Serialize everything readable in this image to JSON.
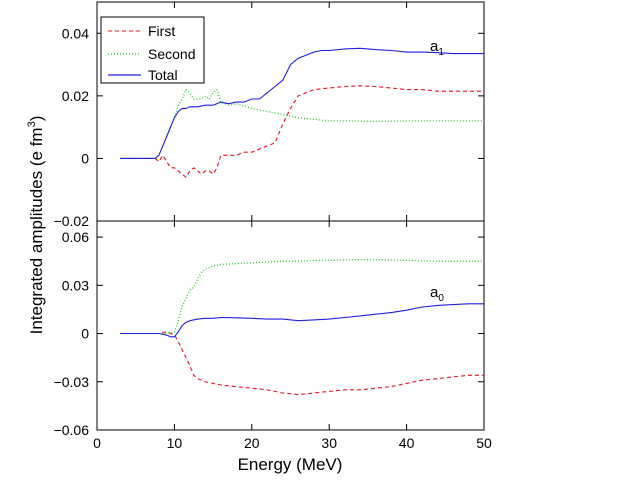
{
  "chart_data": [
    {
      "type": "line",
      "panel_label": "a",
      "panel_subscript": "1",
      "xlabel": "Energy (MeV)",
      "ylabel": "Integrated amplitudes (e fm",
      "ylabel_superscript": "3",
      "ylabel_close": ")",
      "xlim": [
        0,
        50
      ],
      "ylim": [
        -0.02,
        0.05
      ],
      "y_ticks": [
        -0.02,
        0,
        0.02,
        0.04
      ],
      "y_tick_labels": [
        "−0.02",
        "0",
        "0.02",
        "0.04"
      ],
      "grid": false,
      "legend": "top-left",
      "series": [
        {
          "name": "First",
          "color": "#e8141e",
          "dash": "dashed",
          "x": [
            3,
            7.5,
            8,
            8.5,
            9,
            9.5,
            10,
            10.5,
            11,
            11.5,
            12,
            12.5,
            13,
            13.5,
            14,
            14.5,
            15,
            15.5,
            16,
            17,
            18,
            19,
            20,
            21,
            22,
            23,
            24,
            25,
            26,
            27,
            28,
            30,
            32,
            34,
            36,
            38,
            40,
            42,
            44,
            46,
            48,
            50
          ],
          "y": [
            0,
            0,
            -0.001,
            0.001,
            -0.001,
            -0.003,
            -0.003,
            -0.004,
            -0.005,
            -0.006,
            -0.004,
            -0.003,
            -0.004,
            -0.005,
            -0.004,
            -0.004,
            -0.005,
            -0.003,
            0.001,
            0.001,
            0.001,
            0.002,
            0.002,
            0.003,
            0.004,
            0.005,
            0.011,
            0.016,
            0.02,
            0.021,
            0.022,
            0.0225,
            0.023,
            0.0232,
            0.023,
            0.0225,
            0.022,
            0.022,
            0.0215,
            0.0215,
            0.0215,
            0.0215
          ]
        },
        {
          "name": "Second",
          "color": "#1fc81f",
          "dash": "dotted",
          "x": [
            3,
            7.5,
            8,
            8.5,
            9,
            9.5,
            10,
            10.5,
            11,
            11.5,
            12,
            12.5,
            13,
            13.5,
            14,
            14.5,
            15,
            15.5,
            16,
            17,
            18,
            20,
            22,
            24,
            26,
            28,
            30,
            33,
            36,
            40,
            44,
            48,
            50
          ],
          "y": [
            0,
            0,
            0.001,
            0.004,
            0.007,
            0.01,
            0.013,
            0.017,
            0.019,
            0.022,
            0.021,
            0.019,
            0.019,
            0.019,
            0.02,
            0.019,
            0.021,
            0.022,
            0.018,
            0.017,
            0.0175,
            0.016,
            0.015,
            0.014,
            0.013,
            0.0125,
            0.012,
            0.012,
            0.0118,
            0.012,
            0.012,
            0.012,
            0.012
          ]
        },
        {
          "name": "Total",
          "color": "#1f1fe0",
          "dash": "solid",
          "x": [
            3,
            7.5,
            8,
            8.5,
            9,
            9.5,
            10,
            10.5,
            11,
            11.5,
            12,
            13,
            14,
            15,
            16,
            17,
            18,
            19,
            20,
            21,
            22,
            23,
            24,
            25,
            26,
            27,
            28,
            29,
            30,
            32,
            34,
            36,
            38,
            40,
            42,
            44,
            46,
            48,
            50
          ],
          "y": [
            0,
            0,
            0.001,
            0.004,
            0.007,
            0.01,
            0.013,
            0.015,
            0.016,
            0.016,
            0.0165,
            0.0165,
            0.017,
            0.017,
            0.018,
            0.0175,
            0.018,
            0.018,
            0.019,
            0.019,
            0.021,
            0.023,
            0.025,
            0.03,
            0.032,
            0.033,
            0.034,
            0.0345,
            0.0345,
            0.035,
            0.0352,
            0.0348,
            0.0345,
            0.034,
            0.034,
            0.0338,
            0.0335,
            0.0335,
            0.0335
          ]
        }
      ]
    },
    {
      "type": "line",
      "panel_label": "a",
      "panel_subscript": "0",
      "xlabel": "Energy (MeV)",
      "xlim": [
        0,
        50
      ],
      "ylim": [
        -0.06,
        0.07
      ],
      "y_ticks": [
        -0.06,
        -0.03,
        0,
        0.03,
        0.06
      ],
      "y_tick_labels": [
        "−0.06",
        "−0.03",
        "0",
        "0.03",
        "0.06"
      ],
      "x_ticks": [
        0,
        10,
        20,
        30,
        40,
        50
      ],
      "x_tick_labels": [
        "0",
        "10",
        "20",
        "30",
        "40",
        "50"
      ],
      "grid": false,
      "series": [
        {
          "name": "First",
          "color": "#e8141e",
          "dash": "dashed",
          "x": [
            3,
            8,
            9,
            10,
            10.5,
            11,
            11.5,
            12,
            12.5,
            13,
            14,
            15,
            16,
            18,
            20,
            22,
            24,
            26,
            28,
            30,
            32,
            34,
            36,
            38,
            40,
            42,
            44,
            46,
            48,
            50
          ],
          "y": [
            0,
            0,
            0.001,
            -0.001,
            -0.005,
            -0.01,
            -0.015,
            -0.02,
            -0.026,
            -0.028,
            -0.03,
            -0.031,
            -0.032,
            -0.033,
            -0.034,
            -0.035,
            -0.037,
            -0.038,
            -0.037,
            -0.036,
            -0.035,
            -0.035,
            -0.034,
            -0.033,
            -0.031,
            -0.029,
            -0.028,
            -0.027,
            -0.026,
            -0.026
          ]
        },
        {
          "name": "Second",
          "color": "#1fc81f",
          "dash": "dotted",
          "x": [
            3,
            8,
            9,
            10,
            10.5,
            11,
            11.5,
            12,
            12.5,
            13,
            13.5,
            14,
            15,
            16,
            18,
            20,
            22,
            24,
            26,
            28,
            30,
            33,
            36,
            40,
            44,
            48,
            50
          ],
          "y": [
            0,
            0,
            0,
            0.001,
            0.008,
            0.017,
            0.022,
            0.027,
            0.029,
            0.034,
            0.038,
            0.04,
            0.042,
            0.043,
            0.0435,
            0.044,
            0.0445,
            0.045,
            0.045,
            0.0455,
            0.0455,
            0.046,
            0.046,
            0.0455,
            0.045,
            0.045,
            0.045
          ]
        },
        {
          "name": "Total",
          "color": "#1f1fe0",
          "dash": "solid",
          "x": [
            3,
            8,
            9,
            9.5,
            10,
            10.5,
            11,
            11.5,
            12,
            13,
            14,
            15,
            16,
            18,
            20,
            22,
            24,
            26,
            28,
            30,
            32,
            34,
            36,
            38,
            40,
            42,
            44,
            46,
            48,
            50
          ],
          "y": [
            0,
            0,
            -0.001,
            -0.002,
            -0.002,
            0.001,
            0.005,
            0.007,
            0.008,
            0.009,
            0.0095,
            0.0095,
            0.01,
            0.0098,
            0.0095,
            0.009,
            0.009,
            0.008,
            0.0085,
            0.009,
            0.01,
            0.011,
            0.012,
            0.013,
            0.0145,
            0.0165,
            0.0175,
            0.018,
            0.0185,
            0.0185
          ]
        }
      ]
    }
  ]
}
